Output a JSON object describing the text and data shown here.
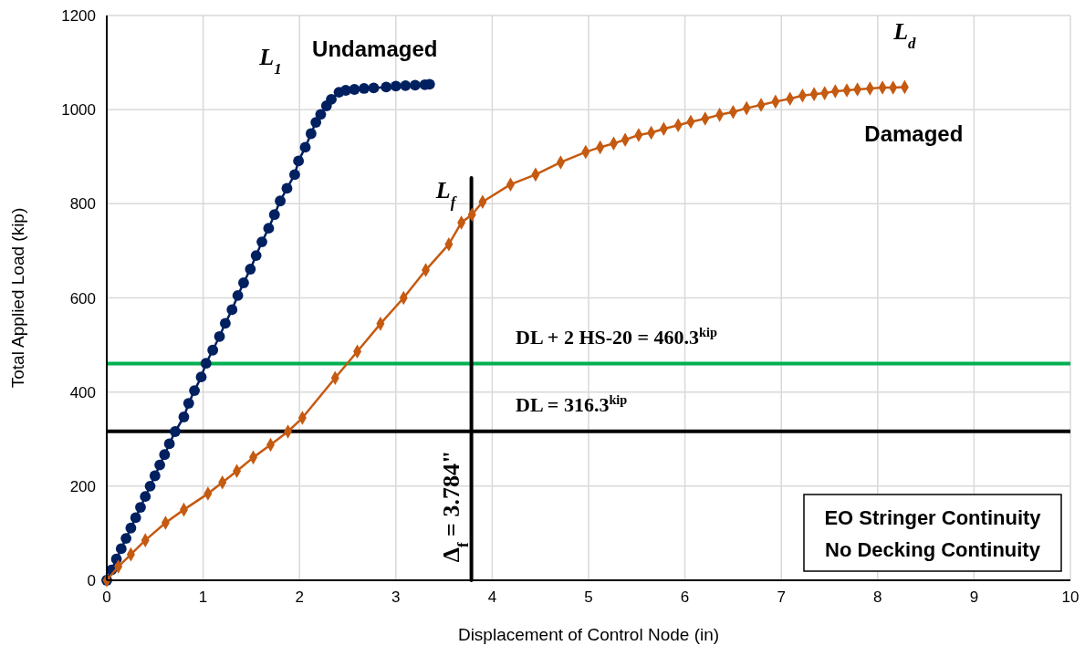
{
  "chart_data": {
    "type": "line",
    "xlabel": "Displacement of Control Node (in)",
    "ylabel": "Total Applied Load (kip)",
    "xlim": [
      0,
      10
    ],
    "xticks": [
      0,
      1,
      2,
      3,
      4,
      5,
      6,
      7,
      8,
      9,
      10
    ],
    "ylim": [
      0,
      1200
    ],
    "yticks": [
      0,
      200,
      400,
      600,
      800,
      1000,
      1200
    ],
    "grid": true,
    "legend": false,
    "series": [
      {
        "name": "Undamaged",
        "color": "#002060",
        "marker": "circle",
        "x": [
          0,
          0.05,
          0.1,
          0.15,
          0.2,
          0.25,
          0.3,
          0.35,
          0.4,
          0.45,
          0.5,
          0.55,
          0.6,
          0.65,
          0.71,
          0.8,
          0.85,
          0.91,
          0.98,
          1.03,
          1.1,
          1.17,
          1.23,
          1.3,
          1.36,
          1.42,
          1.49,
          1.55,
          1.61,
          1.68,
          1.74,
          1.8,
          1.87,
          1.95,
          1.99,
          2.06,
          2.12,
          2.17,
          2.22,
          2.28,
          2.33,
          2.41,
          2.48,
          2.57,
          2.67,
          2.77,
          2.9,
          3.0,
          3.1,
          3.2,
          3.3,
          3.35
        ],
        "values": [
          0,
          22,
          45,
          67,
          89,
          111,
          133,
          155,
          178,
          200,
          222,
          245,
          267,
          290,
          316,
          347,
          376,
          403,
          432,
          461,
          489,
          518,
          546,
          575,
          605,
          632,
          661,
          690,
          719,
          748,
          777,
          806,
          833,
          862,
          891,
          920,
          949,
          973,
          990,
          1008,
          1022,
          1037,
          1041,
          1043,
          1045,
          1046,
          1048,
          1050,
          1051,
          1052,
          1053,
          1054
        ]
      },
      {
        "name": "Damaged",
        "color": "#c55a11",
        "marker": "diamond",
        "x": [
          0,
          0.12,
          0.25,
          0.4,
          0.61,
          0.8,
          1.05,
          1.2,
          1.35,
          1.52,
          1.7,
          1.88,
          2.03,
          2.37,
          2.6,
          2.84,
          3.08,
          3.31,
          3.55,
          3.68,
          3.79,
          3.9,
          4.19,
          4.45,
          4.71,
          4.97,
          5.12,
          5.26,
          5.38,
          5.52,
          5.65,
          5.78,
          5.93,
          6.06,
          6.21,
          6.36,
          6.5,
          6.64,
          6.79,
          6.94,
          7.09,
          7.22,
          7.34,
          7.45,
          7.56,
          7.68,
          7.79,
          7.92,
          8.05,
          8.16,
          8.28
        ],
        "values": [
          0,
          29,
          55,
          85,
          122,
          150,
          184,
          208,
          232,
          261,
          288,
          316,
          345,
          430,
          486,
          545,
          600,
          659,
          714,
          760,
          777,
          804,
          841,
          862,
          888,
          910,
          920,
          928,
          936,
          946,
          951,
          959,
          967,
          974,
          981,
          989,
          995,
          1003,
          1010,
          1017,
          1023,
          1030,
          1033,
          1035,
          1039,
          1041,
          1043,
          1045,
          1047,
          1047,
          1048
        ]
      },
      {
        "type": "line",
        "color": "#000000",
        "marker": "none",
        "x": [
          3.784,
          3.784
        ],
        "values": [
          0,
          855
        ]
      }
    ],
    "ref_lines": [
      {
        "axis": "y",
        "value": 460.3,
        "label": "DL + 2 HS-20 = 460.3$^{kip}$",
        "color": "#00b050"
      },
      {
        "axis": "y",
        "value": 316.3,
        "label": "DL = 316.3$^{kip}$",
        "color": "#000000"
      }
    ],
    "annotations": [
      {
        "text": "L$_{1}$",
        "x": 2.41,
        "y": 1037
      },
      {
        "text": "L$_{f}$",
        "x": 3.784,
        "y": 855
      },
      {
        "text": "L$_{d}$",
        "x": 8.28,
        "y": 1048
      },
      {
        "text": "Δ$_{f}$ = 3.784\"",
        "x": 3.784,
        "y": 157
      },
      "EO Stringer Continuity\nNo Decking Continuity"
    ]
  }
}
